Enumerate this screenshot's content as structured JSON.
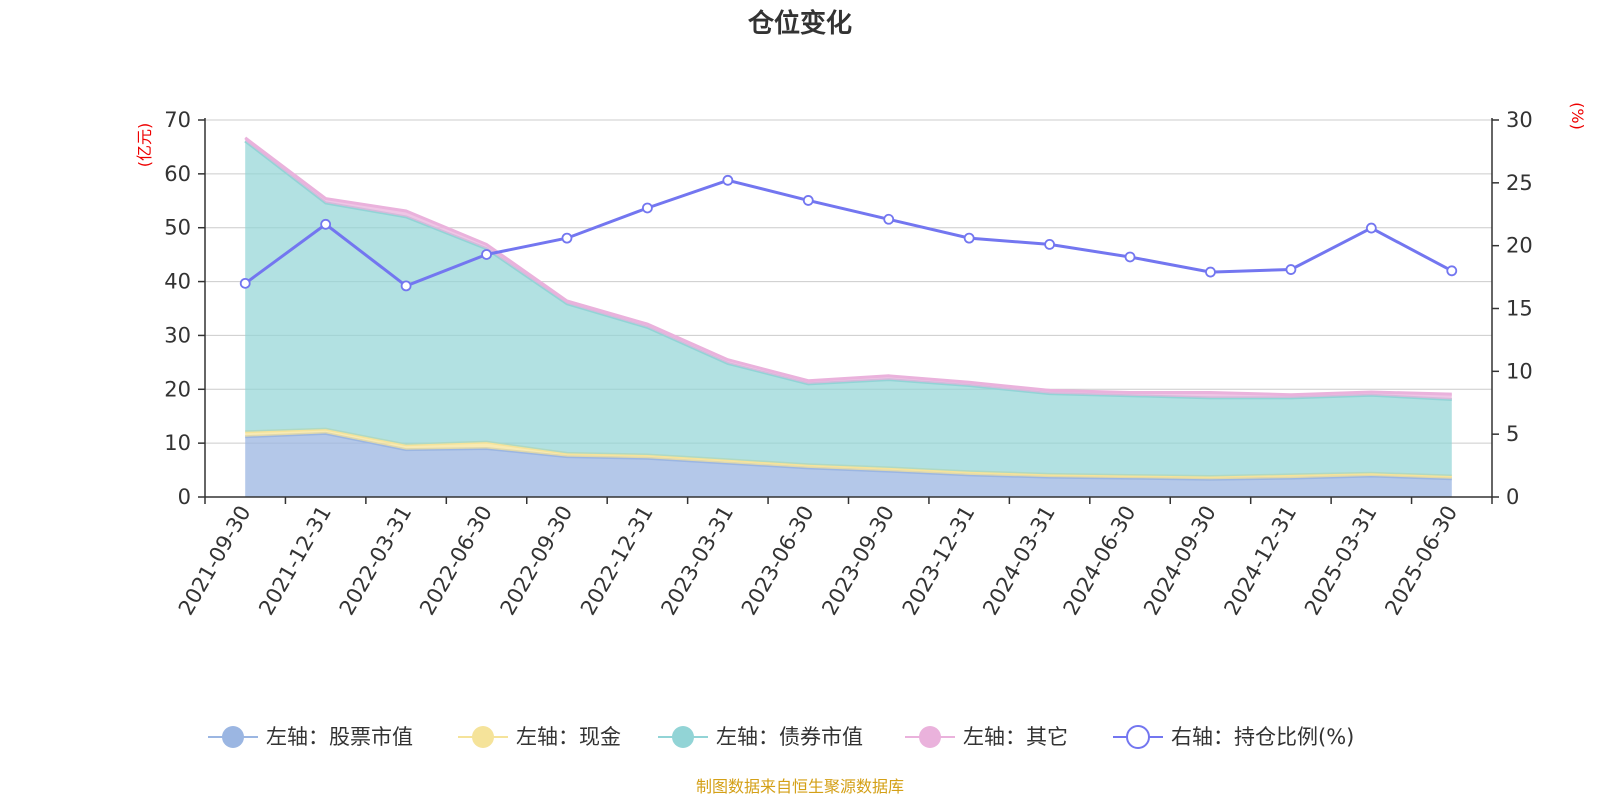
{
  "title": "仓位变化",
  "left_unit": "(亿元)",
  "right_unit": "(%)",
  "source": "制图数据来自恒生聚源数据库",
  "colors": {
    "stock": "#9bb6e2",
    "cash": "#f5e39a",
    "bond": "#92d4d6",
    "other": "#eab2dc",
    "ratio": "#7376f0",
    "axis_unit": "#ee0000",
    "source": "#d4a017",
    "grid": "#cccccc",
    "axis": "#333333"
  },
  "chart_data": {
    "type": "area",
    "categories": [
      "2021-09-30",
      "2021-12-31",
      "2022-03-31",
      "2022-06-30",
      "2022-09-30",
      "2022-12-31",
      "2023-03-31",
      "2023-06-30",
      "2023-09-30",
      "2023-12-31",
      "2024-03-31",
      "2024-06-30",
      "2024-09-30",
      "2024-12-31",
      "2025-03-31",
      "2025-06-30"
    ],
    "left_axis": {
      "min": 0,
      "max": 70,
      "ticks": [
        0,
        10,
        20,
        30,
        40,
        50,
        60,
        70
      ]
    },
    "right_axis": {
      "min": 0,
      "max": 30,
      "ticks": [
        0,
        5,
        10,
        15,
        20,
        25,
        30
      ]
    },
    "grid": true,
    "legend_position": "bottom",
    "series": [
      {
        "key": "stock",
        "name": "左轴：股票市值",
        "axis": "left",
        "values": [
          11.2,
          11.8,
          8.8,
          9.0,
          7.5,
          7.2,
          6.3,
          5.4,
          4.8,
          4.1,
          3.7,
          3.5,
          3.3,
          3.5,
          3.9,
          3.4
        ]
      },
      {
        "key": "cash",
        "name": "左轴：现金",
        "axis": "left",
        "values": [
          0.9,
          0.8,
          0.9,
          1.2,
          0.6,
          0.6,
          0.6,
          0.6,
          0.6,
          0.6,
          0.5,
          0.5,
          0.5,
          0.6,
          0.5,
          0.5
        ]
      },
      {
        "key": "bond",
        "name": "左轴：债券市值",
        "axis": "left",
        "values": [
          54.0,
          42.0,
          42.3,
          35.9,
          27.8,
          23.7,
          17.9,
          15.0,
          16.4,
          16.0,
          15.0,
          14.8,
          14.6,
          14.3,
          14.5,
          14.2
        ]
      },
      {
        "key": "other",
        "name": "左轴：其它",
        "axis": "left",
        "values": [
          0.6,
          0.8,
          1.1,
          0.8,
          0.5,
          0.6,
          0.7,
          0.6,
          0.7,
          0.6,
          0.6,
          0.6,
          1.0,
          0.6,
          0.6,
          1.0
        ]
      },
      {
        "key": "ratio",
        "name": "右轴：持仓比例(%)",
        "axis": "right",
        "values": [
          17.0,
          21.7,
          16.8,
          19.3,
          20.6,
          23.0,
          25.2,
          23.6,
          22.1,
          20.6,
          20.1,
          19.1,
          17.9,
          18.1,
          21.4,
          18.0
        ]
      }
    ]
  }
}
